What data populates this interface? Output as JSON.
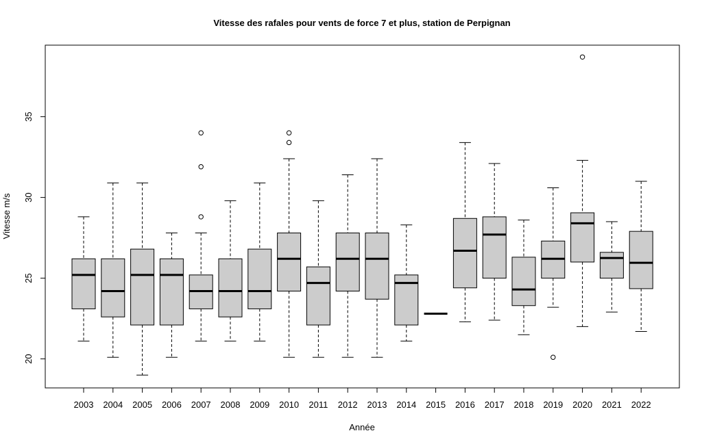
{
  "chart_data": {
    "type": "boxplot",
    "title": "Vitesse des rafales pour vents de force 7 et plus, station de Perpignan",
    "xlabel": "Année",
    "ylabel": "Vitesse m/s",
    "ylim": [
      19.0,
      39.7
    ],
    "yticks": [
      20,
      25,
      30,
      35
    ],
    "grid": false,
    "box_color": "#cccccc",
    "categories": [
      "2003",
      "2004",
      "2005",
      "2006",
      "2007",
      "2008",
      "2009",
      "2010",
      "2011",
      "2012",
      "2013",
      "2014",
      "2015",
      "2016",
      "2017",
      "2018",
      "2019",
      "2020",
      "2021",
      "2022"
    ],
    "boxes": [
      {
        "category": "2003",
        "low": 21.1,
        "q1": 23.1,
        "median": 25.2,
        "q3": 26.2,
        "high": 28.8,
        "outliers": []
      },
      {
        "category": "2004",
        "low": 20.1,
        "q1": 22.6,
        "median": 24.2,
        "q3": 26.2,
        "high": 30.9,
        "outliers": []
      },
      {
        "category": "2005",
        "low": 19.0,
        "q1": 22.1,
        "median": 25.2,
        "q3": 26.8,
        "high": 30.9,
        "outliers": []
      },
      {
        "category": "2006",
        "low": 20.1,
        "q1": 22.1,
        "median": 25.2,
        "q3": 26.2,
        "high": 27.8,
        "outliers": []
      },
      {
        "category": "2007",
        "low": 21.1,
        "q1": 23.1,
        "median": 24.2,
        "q3": 25.2,
        "high": 27.8,
        "outliers": [
          28.8,
          31.9,
          34.0
        ]
      },
      {
        "category": "2008",
        "low": 21.1,
        "q1": 22.6,
        "median": 24.2,
        "q3": 26.2,
        "high": 29.8,
        "outliers": []
      },
      {
        "category": "2009",
        "low": 21.1,
        "q1": 23.1,
        "median": 24.2,
        "q3": 26.8,
        "high": 30.9,
        "outliers": []
      },
      {
        "category": "2010",
        "low": 20.1,
        "q1": 24.2,
        "median": 26.2,
        "q3": 27.8,
        "high": 32.4,
        "outliers": [
          33.4,
          34.0
        ]
      },
      {
        "category": "2011",
        "low": 20.1,
        "q1": 22.1,
        "median": 24.7,
        "q3": 25.7,
        "high": 29.8,
        "outliers": []
      },
      {
        "category": "2012",
        "low": 20.1,
        "q1": 24.2,
        "median": 26.2,
        "q3": 27.8,
        "high": 31.4,
        "outliers": []
      },
      {
        "category": "2013",
        "low": 20.1,
        "q1": 23.7,
        "median": 26.2,
        "q3": 27.8,
        "high": 32.4,
        "outliers": []
      },
      {
        "category": "2014",
        "low": 21.1,
        "q1": 22.1,
        "median": 24.7,
        "q3": 25.2,
        "high": 28.3,
        "outliers": []
      },
      {
        "category": "2015",
        "low": 22.8,
        "q1": 22.8,
        "median": 22.8,
        "q3": 22.8,
        "high": 22.8,
        "outliers": []
      },
      {
        "category": "2016",
        "low": 22.3,
        "q1": 24.4,
        "median": 26.7,
        "q3": 28.7,
        "high": 33.4,
        "outliers": []
      },
      {
        "category": "2017",
        "low": 22.4,
        "q1": 25.0,
        "median": 27.7,
        "q3": 28.8,
        "high": 32.1,
        "outliers": []
      },
      {
        "category": "2018",
        "low": 21.5,
        "q1": 23.3,
        "median": 24.3,
        "q3": 26.3,
        "high": 28.6,
        "outliers": []
      },
      {
        "category": "2019",
        "low": 23.2,
        "q1": 25.0,
        "median": 26.2,
        "q3": 27.3,
        "high": 30.6,
        "outliers": [
          20.1
        ]
      },
      {
        "category": "2020",
        "low": 22.0,
        "q1": 26.0,
        "median": 28.4,
        "q3": 29.05,
        "high": 32.3,
        "outliers": [
          38.7
        ]
      },
      {
        "category": "2021",
        "low": 22.9,
        "q1": 25.0,
        "median": 26.25,
        "q3": 26.6,
        "high": 28.5,
        "outliers": []
      },
      {
        "category": "2022",
        "low": 21.7,
        "q1": 24.35,
        "median": 25.95,
        "q3": 27.9,
        "high": 31.0,
        "outliers": []
      }
    ]
  }
}
